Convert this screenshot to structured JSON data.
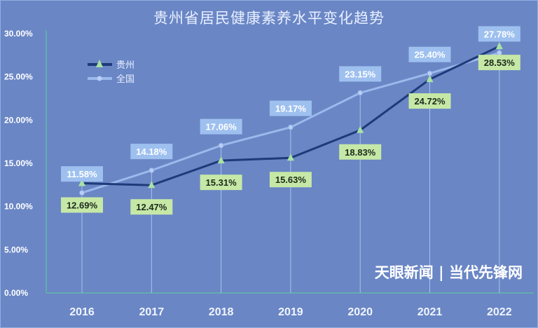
{
  "chart_data": {
    "type": "line",
    "title": "贵州省居民健康素养水平变化趋势",
    "categories": [
      "2016",
      "2017",
      "2018",
      "2019",
      "2020",
      "2021",
      "2022"
    ],
    "series": [
      {
        "name": "贵州",
        "values": [
          12.69,
          12.47,
          15.31,
          15.63,
          18.83,
          24.72,
          28.53
        ],
        "labels": [
          "12.69%",
          "12.47%",
          "15.31%",
          "15.63%",
          "18.83%",
          "24.72%",
          "28.53%"
        ],
        "color": "#1f3a7a",
        "marker": "triangle"
      },
      {
        "name": "全国",
        "values": [
          11.58,
          14.18,
          17.06,
          19.17,
          23.15,
          25.4,
          27.78
        ],
        "labels": [
          "11.58%",
          "14.18%",
          "17.06%",
          "19.17%",
          "23.15%",
          "25.40%",
          "27.78%"
        ],
        "color": "#9cb9ec",
        "marker": "circle"
      }
    ],
    "ylim": [
      0,
      30
    ],
    "yticks": [
      "0.00%",
      "5.00%",
      "10.00%",
      "15.00%",
      "20.00%",
      "25.00%",
      "30.00%"
    ],
    "legend": "top-left",
    "highlight_label_color": "#c0201a"
  },
  "watermark": "天眼新闻 | 当代先锋网"
}
